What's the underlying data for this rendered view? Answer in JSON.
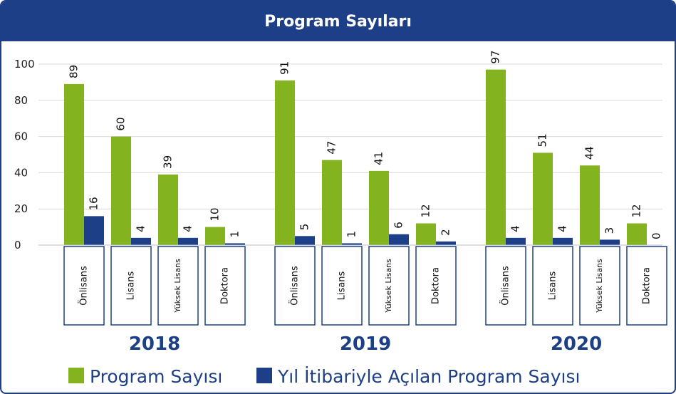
{
  "colors": {
    "accent": "#1d3f87",
    "program": "#84b320",
    "opened": "#1d3f87"
  },
  "chart_data": {
    "type": "bar",
    "title": "Program Sayıları",
    "ylim": [
      0,
      100
    ],
    "yticks": [
      0,
      20,
      40,
      60,
      80,
      100
    ],
    "grid": true,
    "legend_position": "bottom",
    "categories": [
      "Önlisans",
      "Lisans",
      "Yüksek Lisans",
      "Doktora"
    ],
    "groups": [
      {
        "year": "2018",
        "series": [
          {
            "name": "Program Sayısı",
            "values": [
              89,
              60,
              39,
              10
            ]
          },
          {
            "name": "Yıl İtibariyle Açılan Program Sayısı",
            "values": [
              16,
              4,
              4,
              1
            ]
          }
        ]
      },
      {
        "year": "2019",
        "series": [
          {
            "name": "Program Sayısı",
            "values": [
              91,
              47,
              41,
              12
            ]
          },
          {
            "name": "Yıl İtibariyle Açılan Program Sayısı",
            "values": [
              5,
              1,
              6,
              2
            ]
          }
        ]
      },
      {
        "year": "2020",
        "series": [
          {
            "name": "Program Sayısı",
            "values": [
              97,
              51,
              44,
              12
            ]
          },
          {
            "name": "Yıl İtibariyle Açılan Program Sayısı",
            "values": [
              4,
              4,
              3,
              0
            ]
          }
        ]
      }
    ],
    "legend": [
      "Program Sayısı",
      "Yıl İtibariyle Açılan Program Sayısı"
    ]
  }
}
